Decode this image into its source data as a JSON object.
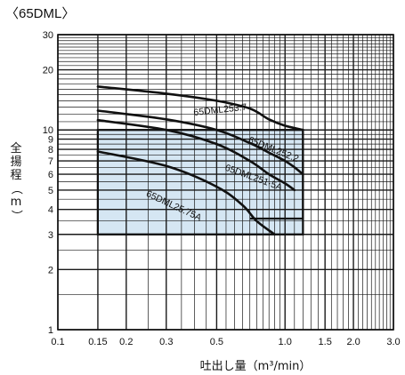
{
  "chart_data": {
    "type": "line",
    "title": "〈65DML〉",
    "xlabel": "吐出し量（m³/min）",
    "ylabel": "全揚程（m）",
    "x_scale": "log",
    "y_scale": "log",
    "xlim": [
      0.1,
      3.0
    ],
    "ylim": [
      1,
      30
    ],
    "grid": true,
    "x_ticks": [
      {
        "value": 0.1,
        "label": "0.1"
      },
      {
        "value": 0.15,
        "label": "0.15"
      },
      {
        "value": 0.2,
        "label": "0.2"
      },
      {
        "value": 0.3,
        "label": "0.3"
      },
      {
        "value": 0.5,
        "label": "0.5"
      },
      {
        "value": 1.0,
        "label": "1.0"
      },
      {
        "value": 1.5,
        "label": "1.5"
      },
      {
        "value": 2.0,
        "label": "2.0"
      },
      {
        "value": 3.0,
        "label": "3.0"
      }
    ],
    "y_ticks": [
      {
        "value": 1,
        "label": "1"
      },
      {
        "value": 2,
        "label": "2"
      },
      {
        "value": 3,
        "label": "3"
      },
      {
        "value": 4,
        "label": "4"
      },
      {
        "value": 5,
        "label": "5"
      },
      {
        "value": 6,
        "label": "6"
      },
      {
        "value": 7,
        "label": "7"
      },
      {
        "value": 8,
        "label": "8"
      },
      {
        "value": 9,
        "label": "9"
      },
      {
        "value": 10,
        "label": "10"
      },
      {
        "value": 20,
        "label": "20"
      },
      {
        "value": 30,
        "label": "30"
      }
    ],
    "operating_region": [
      [
        0.15,
        3
      ],
      [
        1.2,
        3
      ],
      [
        1.2,
        10
      ],
      [
        0.15,
        10
      ]
    ],
    "series": [
      {
        "name": "65DML253.7",
        "points": [
          [
            0.15,
            16.5
          ],
          [
            0.3,
            15.2
          ],
          [
            0.5,
            14
          ],
          [
            0.7,
            12.8
          ],
          [
            0.85,
            11.3
          ],
          [
            1.0,
            10.5
          ],
          [
            1.2,
            10
          ]
        ]
      },
      {
        "name": "65DML252.2",
        "points": [
          [
            0.15,
            12.5
          ],
          [
            0.3,
            11.3
          ],
          [
            0.5,
            10
          ],
          [
            0.7,
            8.6
          ],
          [
            0.85,
            7.7
          ],
          [
            1.0,
            7
          ],
          [
            1.1,
            6.5
          ],
          [
            1.2,
            6
          ]
        ]
      },
      {
        "name": "65DML251.5A",
        "points": [
          [
            0.15,
            11.2
          ],
          [
            0.3,
            10
          ],
          [
            0.5,
            8.5
          ],
          [
            0.7,
            7
          ],
          [
            0.85,
            6
          ],
          [
            1.0,
            5.4
          ],
          [
            1.1,
            5
          ]
        ]
      },
      {
        "name": "65DML25.75A",
        "points": [
          [
            0.15,
            7.8
          ],
          [
            0.3,
            6.6
          ],
          [
            0.5,
            5.2
          ],
          [
            0.65,
            4.2
          ],
          [
            0.75,
            3.5
          ],
          [
            0.9,
            3
          ]
        ]
      }
    ],
    "curve_end_boxes": [
      {
        "points": [
          [
            1.0,
            10.5
          ],
          [
            1.2,
            10
          ],
          [
            1.2,
            3.6
          ],
          [
            0.7,
            3.6
          ]
        ]
      }
    ],
    "curve_labels": [
      {
        "series": "65DML253.7",
        "text": "65DML253.7",
        "x": 0.52,
        "y": 12.2,
        "angle": -6
      },
      {
        "series": "65DML252.2",
        "text": "65DML252.2",
        "x": 0.88,
        "y": 7.75,
        "angle": 22
      },
      {
        "series": "65DML251.5A",
        "text": "65DML251·5A",
        "x": 0.72,
        "y": 5.6,
        "angle": 20
      },
      {
        "series": "65DML25.75A",
        "text": "65DML25.75A",
        "x": 0.32,
        "y": 4.05,
        "angle": 25
      }
    ]
  }
}
